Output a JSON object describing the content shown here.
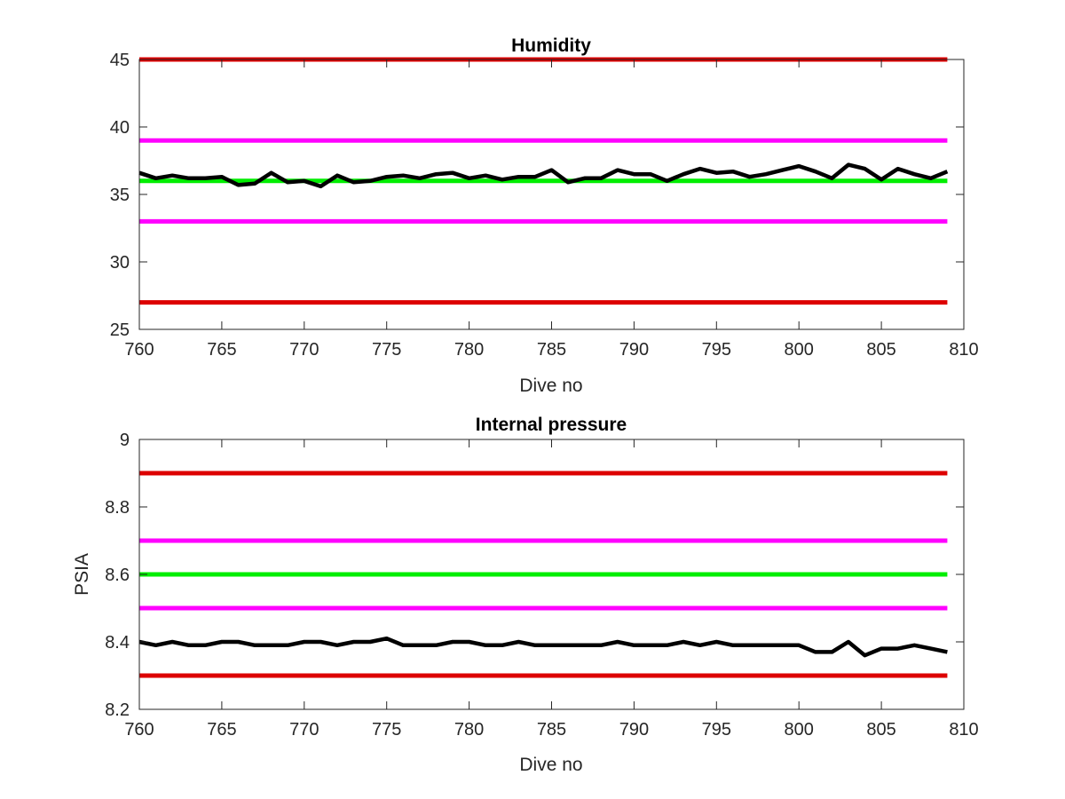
{
  "chart_data": [
    {
      "type": "line",
      "title": "Humidity",
      "xlabel": "Dive no",
      "ylabel": "",
      "xlim": [
        760,
        810
      ],
      "ylim": [
        25,
        45
      ],
      "xticks": [
        "760",
        "765",
        "770",
        "775",
        "780",
        "785",
        "790",
        "795",
        "800",
        "805",
        "810"
      ],
      "yticks": [
        "25",
        "30",
        "35",
        "40",
        "45"
      ],
      "grid": false,
      "reference_lines": [
        {
          "y": 45,
          "color": "#dd0000"
        },
        {
          "y": 39,
          "color": "#ff00ff"
        },
        {
          "y": 36,
          "color": "#00ee00"
        },
        {
          "y": 33,
          "color": "#ff00ff"
        },
        {
          "y": 27,
          "color": "#dd0000"
        }
      ],
      "series": [
        {
          "color": "#000000",
          "x": [
            760,
            761,
            762,
            763,
            764,
            765,
            766,
            767,
            768,
            769,
            770,
            771,
            772,
            773,
            774,
            775,
            776,
            777,
            778,
            779,
            780,
            781,
            782,
            783,
            784,
            785,
            786,
            787,
            788,
            789,
            790,
            791,
            792,
            793,
            794,
            795,
            796,
            797,
            798,
            799,
            800,
            801,
            802,
            803,
            804,
            805,
            806,
            807,
            808,
            809
          ],
          "values": [
            36.6,
            36.2,
            36.4,
            36.2,
            36.2,
            36.3,
            35.7,
            35.8,
            36.6,
            35.9,
            36.0,
            35.6,
            36.4,
            35.9,
            36.0,
            36.3,
            36.4,
            36.2,
            36.5,
            36.6,
            36.2,
            36.4,
            36.1,
            36.3,
            36.3,
            36.8,
            35.9,
            36.2,
            36.2,
            36.8,
            36.5,
            36.5,
            36.0,
            36.5,
            36.9,
            36.6,
            36.7,
            36.3,
            36.5,
            36.8,
            37.1,
            36.7,
            36.2,
            37.2,
            36.9,
            36.1,
            36.9,
            36.5,
            36.2,
            36.7
          ]
        }
      ]
    },
    {
      "type": "line",
      "title": "Internal pressure",
      "xlabel": "Dive no",
      "ylabel": "PSIA",
      "xlim": [
        760,
        810
      ],
      "ylim": [
        8.2,
        9
      ],
      "xticks": [
        "760",
        "765",
        "770",
        "775",
        "780",
        "785",
        "790",
        "795",
        "800",
        "805",
        "810"
      ],
      "yticks": [
        "8.2",
        "8.4",
        "8.6",
        "8.8",
        "9"
      ],
      "grid": false,
      "reference_lines": [
        {
          "y": 8.9,
          "color": "#dd0000"
        },
        {
          "y": 8.7,
          "color": "#ff00ff"
        },
        {
          "y": 8.6,
          "color": "#00ee00"
        },
        {
          "y": 8.5,
          "color": "#ff00ff"
        },
        {
          "y": 8.3,
          "color": "#dd0000"
        }
      ],
      "series": [
        {
          "color": "#000000",
          "x": [
            760,
            761,
            762,
            763,
            764,
            765,
            766,
            767,
            768,
            769,
            770,
            771,
            772,
            773,
            774,
            775,
            776,
            777,
            778,
            779,
            780,
            781,
            782,
            783,
            784,
            785,
            786,
            787,
            788,
            789,
            790,
            791,
            792,
            793,
            794,
            795,
            796,
            797,
            798,
            799,
            800,
            801,
            802,
            803,
            804,
            805,
            806,
            807,
            808,
            809
          ],
          "values": [
            8.4,
            8.39,
            8.4,
            8.39,
            8.39,
            8.4,
            8.4,
            8.39,
            8.39,
            8.39,
            8.4,
            8.4,
            8.39,
            8.4,
            8.4,
            8.41,
            8.39,
            8.39,
            8.39,
            8.4,
            8.4,
            8.39,
            8.39,
            8.4,
            8.39,
            8.39,
            8.39,
            8.39,
            8.39,
            8.4,
            8.39,
            8.39,
            8.39,
            8.4,
            8.39,
            8.4,
            8.39,
            8.39,
            8.39,
            8.39,
            8.39,
            8.37,
            8.37,
            8.4,
            8.36,
            8.38,
            8.38,
            8.39,
            8.38,
            8.37
          ]
        }
      ]
    }
  ]
}
